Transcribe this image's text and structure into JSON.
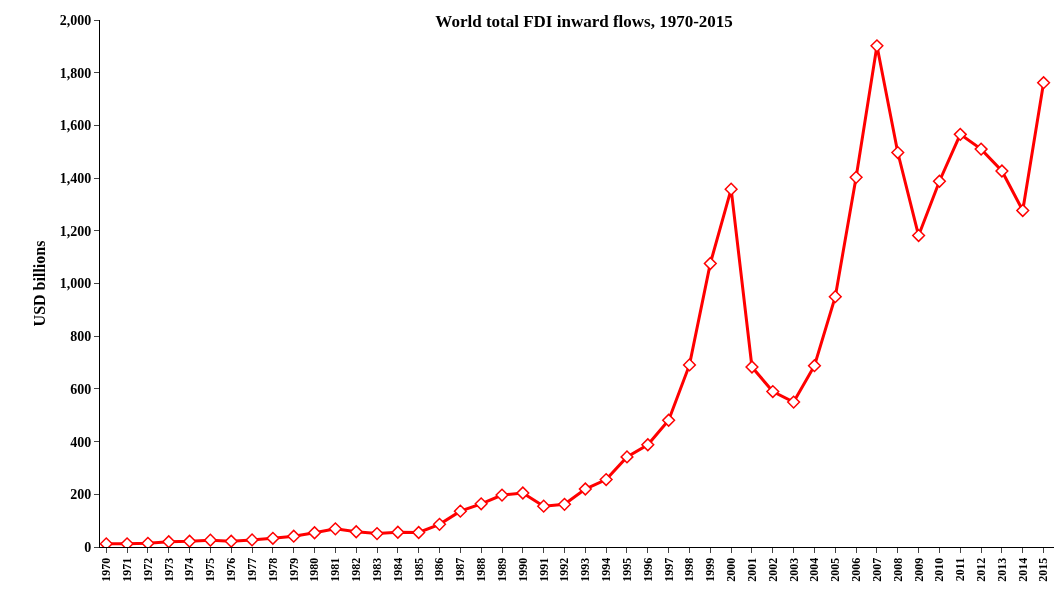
{
  "chart_data": {
    "type": "line",
    "title": "World total FDI inward flows, 1970-2015",
    "ylabel": "USD billions",
    "categories": [
      "1970",
      "1971",
      "1972",
      "1973",
      "1974",
      "1975",
      "1976",
      "1977",
      "1978",
      "1979",
      "1980",
      "1981",
      "1982",
      "1983",
      "1984",
      "1985",
      "1986",
      "1987",
      "1988",
      "1989",
      "1990",
      "1991",
      "1992",
      "1993",
      "1994",
      "1995",
      "1996",
      "1997",
      "1998",
      "1999",
      "2000",
      "2001",
      "2002",
      "2003",
      "2004",
      "2005",
      "2006",
      "2007",
      "2008",
      "2009",
      "2010",
      "2011",
      "2012",
      "2013",
      "2014",
      "2015"
    ],
    "series": [
      {
        "color": "#ff0000",
        "values": [
          12,
          12,
          14,
          20,
          22,
          26,
          22,
          27,
          33,
          41,
          54,
          69,
          58,
          51,
          56,
          55,
          86,
          136,
          164,
          197,
          205,
          155,
          162,
          220,
          256,
          342,
          388,
          481,
          691,
          1076,
          1358,
          683,
          590,
          550,
          688,
          950,
          1403,
          1902,
          1497,
          1182,
          1388,
          1566,
          1510,
          1427,
          1277,
          1762
        ]
      }
    ],
    "ylim": [
      0,
      2000
    ],
    "yticks": [
      {
        "value": 0,
        "label": "0"
      },
      {
        "value": 200,
        "label": "200"
      },
      {
        "value": 400,
        "label": "400"
      },
      {
        "value": 600,
        "label": "600"
      },
      {
        "value": 800,
        "label": "800"
      },
      {
        "value": 1000,
        "label": "1,000"
      },
      {
        "value": 1200,
        "label": "1,200"
      },
      {
        "value": 1400,
        "label": "1,400"
      },
      {
        "value": 1600,
        "label": "1,600"
      },
      {
        "value": 1800,
        "label": "1,800"
      },
      {
        "value": 2000,
        "label": "2,000"
      }
    ],
    "marker": "diamond",
    "line_style": "solid"
  }
}
